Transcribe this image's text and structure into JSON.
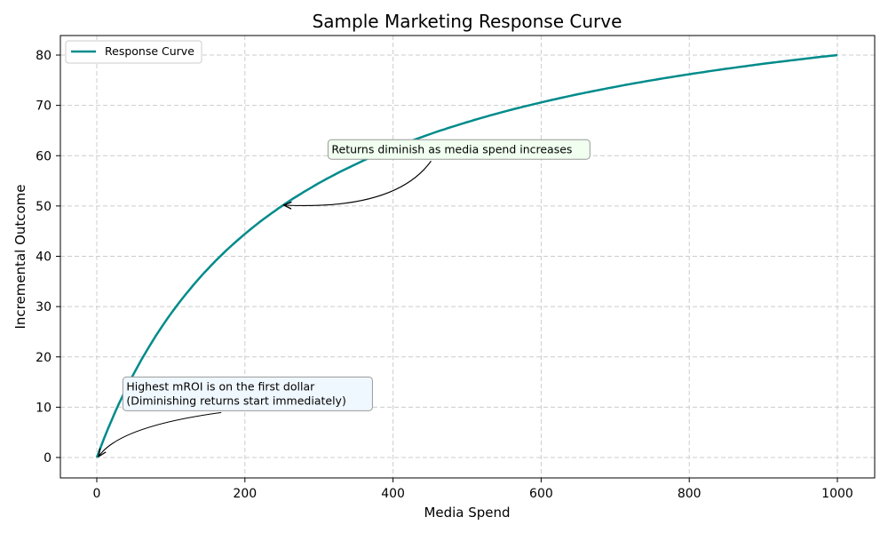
{
  "chart_data": {
    "type": "line",
    "title": "Sample Marketing Response Curve",
    "xlabel": "Media Spend",
    "ylabel": "Incremental Outcome",
    "xlim": [
      -50,
      1050
    ],
    "ylim": [
      -4,
      84
    ],
    "xticks": [
      0,
      200,
      400,
      600,
      800,
      1000
    ],
    "yticks": [
      0,
      10,
      20,
      30,
      40,
      50,
      60,
      70,
      80
    ],
    "grid": true,
    "grid_style": "dashed",
    "legend_placement": "top-left",
    "series": [
      {
        "name": "Response Curve",
        "color": "#008b8b",
        "function": "y = 100 * x / (x + 250)",
        "x": [
          0,
          50,
          100,
          150,
          200,
          250,
          300,
          400,
          500,
          600,
          700,
          800,
          900,
          1000
        ],
        "y": [
          0,
          16.7,
          28.6,
          37.5,
          44.4,
          50,
          54.5,
          61.5,
          66.7,
          70.6,
          73.7,
          76.2,
          78.3,
          80
        ]
      }
    ],
    "annotations": [
      {
        "lines": [
          "Highest mROI is on the first dollar",
          "(Diminishing returns start immediately)"
        ],
        "point": [
          0,
          0
        ],
        "text_at": [
          40,
          10
        ],
        "box_color": "#f0f8ff"
      },
      {
        "lines": [
          "Returns diminish as media spend increases"
        ],
        "point": [
          250,
          50
        ],
        "text_at": [
          317,
          60
        ],
        "box_color": "#f0fff0"
      }
    ]
  }
}
